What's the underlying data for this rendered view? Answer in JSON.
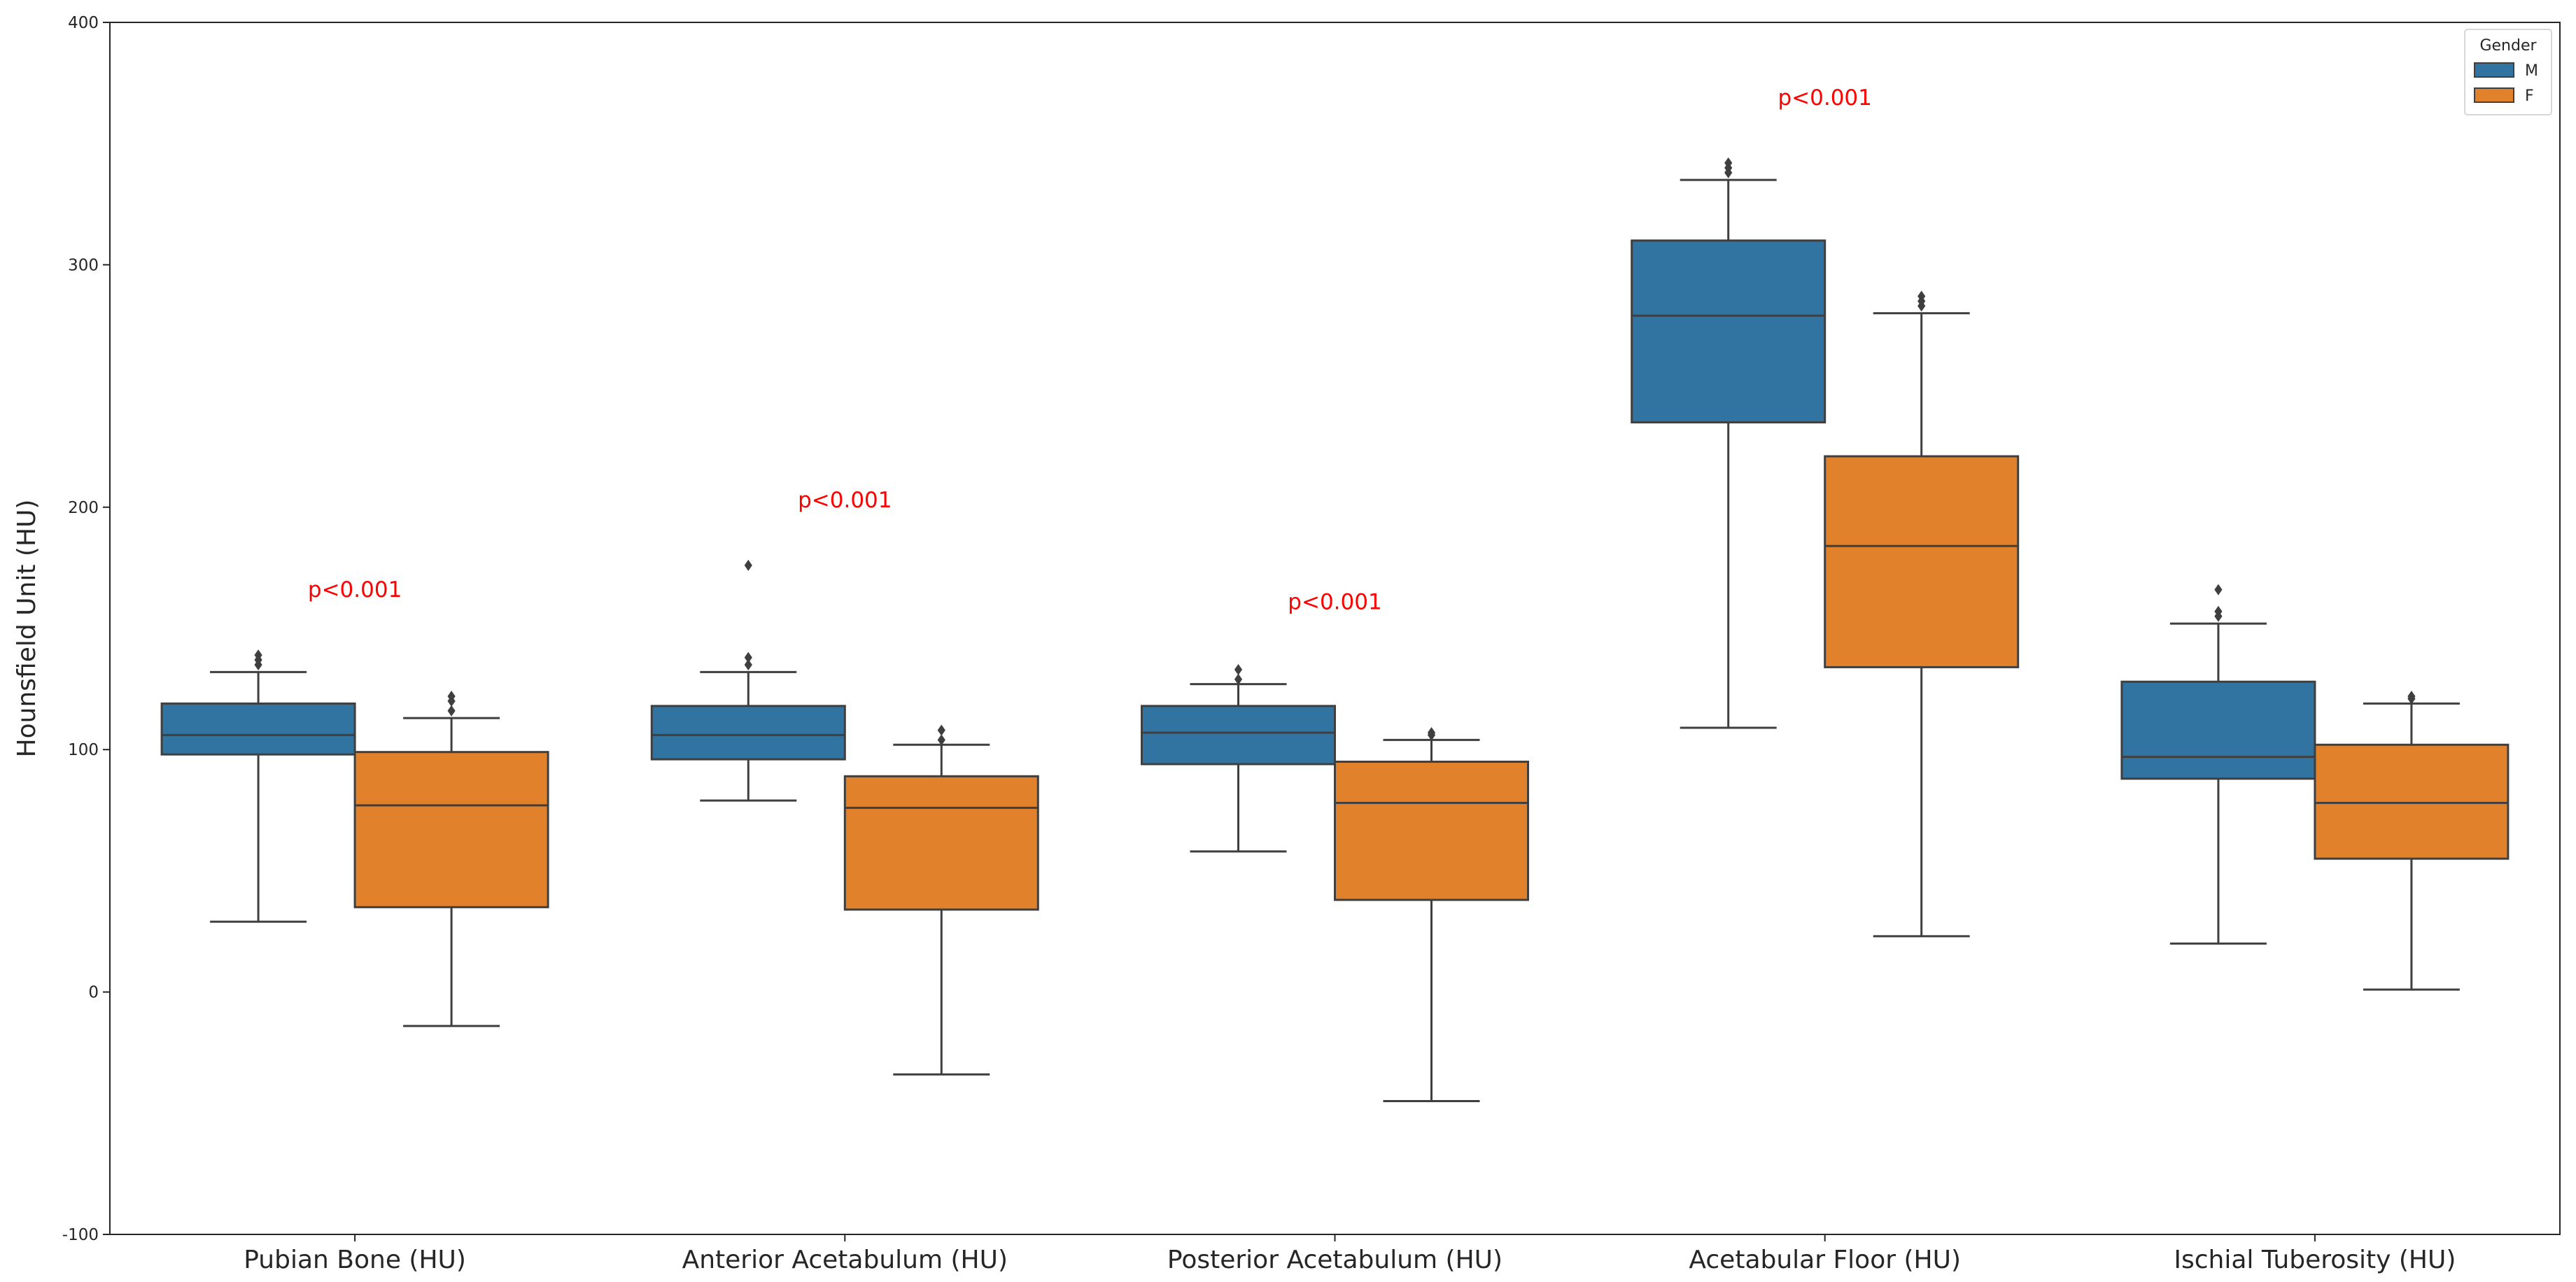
{
  "chart_data": {
    "type": "boxplot",
    "title": "",
    "xlabel": "",
    "ylabel": "Hounsfield Unit (HU)",
    "ylim": [
      -100,
      400
    ],
    "yticks": [
      -100,
      0,
      100,
      200,
      300,
      400
    ],
    "grid": false,
    "categories": [
      "Pubian Bone (HU)",
      "Anterior Acetabulum (HU)",
      "Posterior Acetabulum (HU)",
      "Acetabular Floor (HU)",
      "Ischial Tuberosity (HU)"
    ],
    "legend": {
      "title": "Gender",
      "placement": "top-right",
      "entries": [
        {
          "label": "M",
          "color": "#3274a1"
        },
        {
          "label": "F",
          "color": "#e1812c"
        }
      ]
    },
    "series": [
      {
        "name": "M",
        "color": "#3274a1",
        "boxes": [
          {
            "min": 29,
            "q1": 98,
            "median": 106,
            "q3": 119,
            "max": 132,
            "outliers": [
              135,
              137,
              139
            ]
          },
          {
            "min": 79,
            "q1": 96,
            "median": 106,
            "q3": 118,
            "max": 132,
            "outliers": [
              135,
              138,
              176
            ]
          },
          {
            "min": 58,
            "q1": 94,
            "median": 107,
            "q3": 118,
            "max": 127,
            "outliers": [
              129,
              133
            ]
          },
          {
            "min": 109,
            "q1": 235,
            "median": 279,
            "q3": 310,
            "max": 335,
            "outliers": [
              338,
              340,
              342
            ]
          },
          {
            "min": 20,
            "q1": 88,
            "median": 97,
            "q3": 128,
            "max": 152,
            "outliers": [
              155,
              157,
              166
            ]
          }
        ]
      },
      {
        "name": "F",
        "color": "#e1812c",
        "boxes": [
          {
            "min": -14,
            "q1": 35,
            "median": 77,
            "q3": 99,
            "max": 113,
            "outliers": [
              116,
              120,
              122
            ]
          },
          {
            "min": -34,
            "q1": 34,
            "median": 76,
            "q3": 89,
            "max": 102,
            "outliers": [
              104,
              108
            ]
          },
          {
            "min": -45,
            "q1": 38,
            "median": 78,
            "q3": 95,
            "max": 104,
            "outliers": [
              106,
              107
            ]
          },
          {
            "min": 23,
            "q1": 134,
            "median": 184,
            "q3": 221,
            "max": 280,
            "outliers": [
              283,
              285,
              287
            ]
          },
          {
            "min": 1,
            "q1": 55,
            "median": 78,
            "q3": 102,
            "max": 119,
            "outliers": [
              121,
              122
            ]
          }
        ]
      }
    ],
    "annotations": [
      {
        "text": "p<0.001",
        "category_index": 0,
        "y": 163,
        "color": "#ff0000"
      },
      {
        "text": "p<0.001",
        "category_index": 1,
        "y": 200,
        "color": "#ff0000"
      },
      {
        "text": "p<0.001",
        "category_index": 2,
        "y": 158,
        "color": "#ff0000"
      },
      {
        "text": "p<0.001",
        "category_index": 3,
        "y": 366,
        "color": "#ff0000"
      }
    ]
  }
}
